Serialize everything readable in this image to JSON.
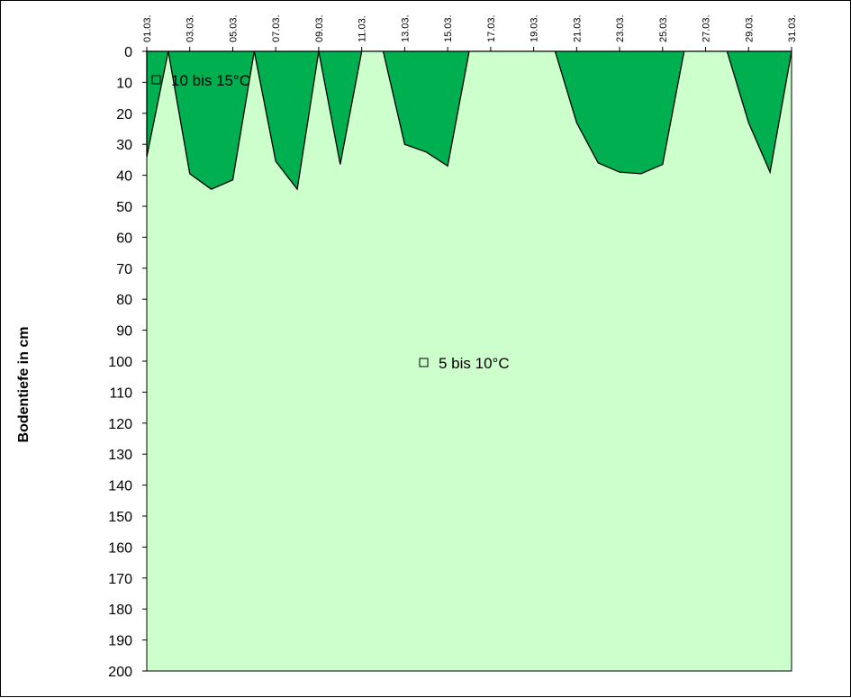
{
  "chart_data": {
    "type": "area",
    "ylabel": "Bodentiefe in cm",
    "xlabel": "",
    "title": "",
    "y_inverted": true,
    "ylim": [
      0,
      200
    ],
    "y_ticks": [
      0,
      10,
      20,
      30,
      40,
      50,
      60,
      70,
      80,
      90,
      100,
      110,
      120,
      130,
      140,
      150,
      160,
      170,
      180,
      190,
      200
    ],
    "x_tick_labels": [
      "01.03.",
      "03.03.",
      "05.03.",
      "07.03.",
      "09.03.",
      "11.03.",
      "13.03.",
      "15.03.",
      "17.03.",
      "19.03.",
      "21.03.",
      "23.03.",
      "25.03.",
      "27.03.",
      "29.03.",
      "31.03."
    ],
    "x_days": [
      1,
      31
    ],
    "colors": {
      "background": "#ccffcc",
      "warm_fill": "#00b050",
      "outline": "#000000"
    },
    "legend": [
      {
        "label": "10 bis 15°C",
        "color": "#00b050"
      },
      {
        "label": "5 bis 10°C",
        "color": "#ccffcc"
      }
    ],
    "series": [
      {
        "name": "10 bis 15°C",
        "day": [
          1,
          2,
          3,
          4,
          5,
          6,
          7,
          8,
          9,
          10,
          11,
          12,
          13,
          14,
          15,
          16,
          17,
          18,
          19,
          20,
          21,
          22,
          23,
          24,
          25,
          26,
          27,
          28,
          29,
          30,
          31
        ],
        "depth": [
          34,
          0,
          39.5,
          44.5,
          41.5,
          0,
          35.5,
          44.5,
          0,
          36.5,
          0,
          0,
          30,
          32.5,
          37,
          0,
          0,
          0,
          0,
          0,
          23,
          36,
          39,
          39.5,
          36.5,
          0,
          0,
          0,
          23,
          39,
          0
        ]
      }
    ]
  }
}
